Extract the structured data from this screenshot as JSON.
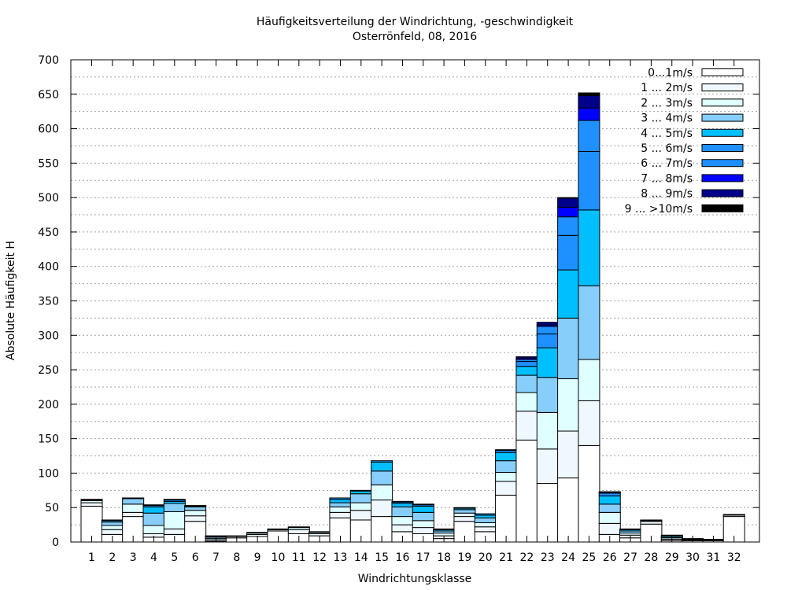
{
  "chart_data": {
    "type": "bar",
    "stacked": true,
    "title": "Häufigkeitsverteilung der Windrichtung, -geschwindigkeit",
    "subtitle": "Osterrönfeld, 08, 2016",
    "xlabel": "Windrichtungsklasse",
    "ylabel": "Absolute Häufigkeit H",
    "ylim": [
      0,
      700
    ],
    "yticks": [
      0,
      50,
      100,
      150,
      200,
      250,
      300,
      350,
      400,
      450,
      500,
      550,
      600,
      650,
      700
    ],
    "grid": true,
    "legend_position": "top-right",
    "categories": [
      "1",
      "2",
      "3",
      "4",
      "5",
      "6",
      "7",
      "8",
      "9",
      "10",
      "11",
      "12",
      "13",
      "14",
      "15",
      "16",
      "17",
      "18",
      "19",
      "20",
      "21",
      "22",
      "23",
      "24",
      "25",
      "26",
      "27",
      "28",
      "29",
      "30",
      "31",
      "32"
    ],
    "series": [
      {
        "name": "0...1m/s",
        "color": "#ffffff",
        "values": [
          52,
          11,
          37,
          7,
          11,
          30,
          1,
          6,
          8,
          16,
          12,
          9,
          35,
          32,
          37,
          15,
          12,
          5,
          30,
          15,
          68,
          148,
          85,
          93,
          140,
          11,
          6,
          26,
          2,
          2,
          2,
          37
        ]
      },
      {
        "name": "1 ... 2m/s",
        "color": "#f0f8ff",
        "values": [
          5,
          7,
          6,
          5,
          8,
          8,
          2,
          2,
          3,
          2,
          6,
          3,
          8,
          14,
          24,
          10,
          9,
          4,
          7,
          7,
          20,
          42,
          50,
          68,
          65,
          16,
          4,
          4,
          2,
          1,
          1,
          2
        ]
      },
      {
        "name": "2 ... 3m/s",
        "color": "#e0ffff",
        "values": [
          3,
          6,
          12,
          12,
          25,
          8,
          2,
          1,
          2,
          1,
          3,
          2,
          8,
          11,
          22,
          12,
          10,
          4,
          5,
          6,
          13,
          27,
          53,
          76,
          60,
          16,
          3,
          1,
          2,
          1,
          1,
          1
        ]
      },
      {
        "name": "3 ... 4m/s",
        "color": "#87cefa",
        "values": [
          1,
          5,
          8,
          18,
          12,
          5,
          2,
          0,
          1,
          0,
          1,
          1,
          6,
          13,
          20,
          14,
          12,
          3,
          5,
          7,
          17,
          25,
          51,
          88,
          107,
          12,
          3,
          1,
          1,
          1,
          0,
          0
        ]
      },
      {
        "name": "4 ... 5m/s",
        "color": "#00bfff",
        "values": [
          1,
          2,
          1,
          9,
          3,
          1,
          1,
          0,
          0,
          0,
          0,
          0,
          5,
          4,
          13,
          5,
          9,
          2,
          2,
          4,
          12,
          13,
          43,
          70,
          110,
          12,
          2,
          0,
          2,
          0,
          0,
          0
        ]
      },
      {
        "name": "5 ... 6m/s",
        "color": "#1e90ff",
        "values": [
          0,
          1,
          0,
          2,
          2,
          1,
          1,
          0,
          0,
          0,
          0,
          0,
          2,
          1,
          2,
          2,
          2,
          1,
          1,
          2,
          3,
          7,
          20,
          50,
          85,
          4,
          1,
          0,
          1,
          0,
          0,
          0
        ]
      },
      {
        "name": "6 ... 7m/s",
        "color": "#1e90ff",
        "values": [
          0,
          0,
          0,
          1,
          1,
          0,
          0,
          0,
          0,
          0,
          0,
          0,
          0,
          0,
          0,
          1,
          1,
          0,
          0,
          0,
          1,
          3,
          11,
          27,
          45,
          1,
          0,
          0,
          0,
          0,
          0,
          0
        ]
      },
      {
        "name": "7 ... 8m/s",
        "color": "#0000ff",
        "values": [
          0,
          0,
          0,
          0,
          0,
          0,
          0,
          0,
          0,
          0,
          0,
          0,
          0,
          0,
          0,
          0,
          0,
          0,
          0,
          0,
          0,
          2,
          2,
          14,
          18,
          0,
          0,
          0,
          0,
          0,
          0,
          0
        ]
      },
      {
        "name": "8 ... 9m/s",
        "color": "#00008b",
        "values": [
          0,
          0,
          0,
          0,
          0,
          0,
          0,
          0,
          0,
          0,
          0,
          0,
          0,
          0,
          0,
          0,
          0,
          0,
          0,
          0,
          0,
          2,
          4,
          13,
          18,
          1,
          0,
          0,
          0,
          0,
          0,
          0
        ]
      },
      {
        "name": "9 ... >10m/s",
        "color": "#000000",
        "values": [
          0,
          0,
          0,
          0,
          0,
          0,
          0,
          0,
          0,
          0,
          0,
          0,
          0,
          0,
          0,
          0,
          0,
          0,
          0,
          0,
          0,
          0,
          0,
          1,
          4,
          0,
          0,
          0,
          0,
          0,
          0,
          0
        ]
      }
    ]
  }
}
